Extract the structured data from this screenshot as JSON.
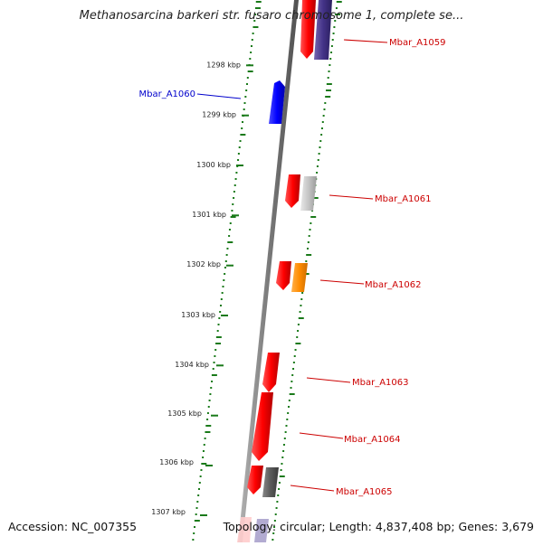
{
  "title": "Methanosarcina barkeri str. fusaro chromosome 1, complete se...",
  "footer": {
    "accession": "Accession: NC_007355",
    "summary": "Topology: circular; Length: 4,837,408 bp; Genes: 3,679"
  },
  "ruler": [
    {
      "label": "1298 kbp"
    },
    {
      "label": "1299 kbp"
    },
    {
      "label": "1300 kbp"
    },
    {
      "label": "1301 kbp"
    },
    {
      "label": "1302 kbp"
    },
    {
      "label": "1303 kbp"
    },
    {
      "label": "1304 kbp"
    },
    {
      "label": "1305 kbp"
    },
    {
      "label": "1306 kbp"
    },
    {
      "label": "1307 kbp"
    }
  ],
  "genes": [
    {
      "name": "Mbar_A1059",
      "strand": "forward",
      "color": "#cc0000"
    },
    {
      "name": "Mbar_A1060",
      "strand": "reverse",
      "color": "#0000cc"
    },
    {
      "name": "Mbar_A1061",
      "strand": "forward",
      "color": "#cc0000"
    },
    {
      "name": "Mbar_A1062",
      "strand": "forward",
      "color": "#cc0000"
    },
    {
      "name": "Mbar_A1063",
      "strand": "forward",
      "color": "#cc0000"
    },
    {
      "name": "Mbar_A1064",
      "strand": "forward",
      "color": "#cc0000"
    },
    {
      "name": "Mbar_A1065",
      "strand": "forward",
      "color": "#cc0000"
    }
  ],
  "colors": {
    "gene_forward": "#ff0000",
    "gene_reverse": "#0000ff",
    "cds_gray": "#bbbbbb",
    "cds_orange": "#ff8c00",
    "cds_purple": "#443388",
    "cds_dark": "#555555",
    "gc_ticks": "#1a7a1a",
    "backbone": "#808080"
  }
}
